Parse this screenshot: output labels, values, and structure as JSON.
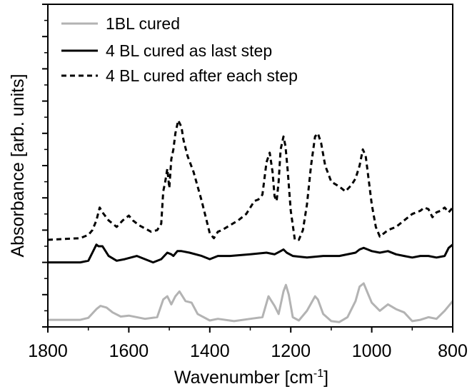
{
  "chart_data": {
    "type": "line",
    "xlabel": "Wavenumber [cm",
    "xlabel_sup": "-1",
    "xlabel_tail": "]",
    "ylabel": "Absorbance [arb. units]",
    "xlim": [
      1800,
      800
    ],
    "x_reversed": true,
    "ylim": [
      0,
      10
    ],
    "y_tick_labels_shown": false,
    "xticks": [
      1800,
      1600,
      1400,
      1200,
      1000,
      800
    ],
    "xtick_labels": [
      "1800",
      "1600",
      "1400",
      "1200",
      "1000",
      "800"
    ],
    "legend_position": "top-left",
    "series": [
      {
        "name": "1BL cured",
        "color": "#b3b3b3",
        "dash": "solid",
        "x": [
          1800,
          1720,
          1700,
          1680,
          1670,
          1655,
          1640,
          1620,
          1600,
          1560,
          1530,
          1515,
          1505,
          1495,
          1485,
          1475,
          1460,
          1445,
          1430,
          1400,
          1380,
          1340,
          1300,
          1270,
          1255,
          1240,
          1230,
          1218,
          1212,
          1205,
          1195,
          1180,
          1160,
          1140,
          1133,
          1120,
          1100,
          1080,
          1060,
          1040,
          1030,
          1020,
          1010,
          1000,
          980,
          960,
          940,
          920,
          900,
          880,
          860,
          840,
          820,
          800
        ],
        "y": [
          0.22,
          0.22,
          0.28,
          0.55,
          0.65,
          0.6,
          0.45,
          0.32,
          0.35,
          0.25,
          0.3,
          0.85,
          0.95,
          0.7,
          0.95,
          1.1,
          0.8,
          0.75,
          0.4,
          0.2,
          0.25,
          0.18,
          0.25,
          0.3,
          0.95,
          0.65,
          0.4,
          1.1,
          1.3,
          1.0,
          0.3,
          0.2,
          0.5,
          0.95,
          0.85,
          0.4,
          0.18,
          0.15,
          0.3,
          0.8,
          1.25,
          1.35,
          1.05,
          0.75,
          0.5,
          0.7,
          0.55,
          0.45,
          0.18,
          0.22,
          0.3,
          0.25,
          0.5,
          0.8
        ]
      },
      {
        "name": "4 BL cured as last step",
        "color": "#000000",
        "dash": "solid",
        "x": [
          1800,
          1720,
          1700,
          1690,
          1680,
          1675,
          1665,
          1650,
          1630,
          1610,
          1580,
          1540,
          1520,
          1505,
          1495,
          1490,
          1480,
          1470,
          1450,
          1420,
          1400,
          1380,
          1350,
          1300,
          1260,
          1240,
          1225,
          1218,
          1210,
          1195,
          1160,
          1120,
          1080,
          1040,
          1030,
          1020,
          1010,
          1000,
          980,
          960,
          940,
          920,
          900,
          880,
          860,
          840,
          820,
          810,
          800
        ],
        "y": [
          2.0,
          2.0,
          2.05,
          2.3,
          2.55,
          2.5,
          2.5,
          2.2,
          2.05,
          2.1,
          2.2,
          2.0,
          2.1,
          2.3,
          2.25,
          2.2,
          2.35,
          2.35,
          2.3,
          2.2,
          2.1,
          2.2,
          2.2,
          2.25,
          2.3,
          2.25,
          2.35,
          2.4,
          2.3,
          2.2,
          2.15,
          2.2,
          2.2,
          2.3,
          2.4,
          2.45,
          2.4,
          2.35,
          2.3,
          2.35,
          2.25,
          2.2,
          2.15,
          2.2,
          2.2,
          2.15,
          2.2,
          2.45,
          2.55
        ]
      },
      {
        "name": "4 BL cured after each step",
        "color": "#000000",
        "dash": "dashed",
        "x": [
          1800,
          1720,
          1710,
          1700,
          1690,
          1680,
          1672,
          1665,
          1650,
          1630,
          1615,
          1600,
          1590,
          1575,
          1560,
          1545,
          1530,
          1520,
          1515,
          1510,
          1505,
          1500,
          1495,
          1490,
          1485,
          1478,
          1470,
          1465,
          1455,
          1440,
          1420,
          1400,
          1390,
          1380,
          1370,
          1350,
          1330,
          1310,
          1300,
          1290,
          1280,
          1270,
          1260,
          1252,
          1245,
          1240,
          1235,
          1230,
          1225,
          1218,
          1213,
          1208,
          1200,
          1190,
          1180,
          1170,
          1160,
          1150,
          1140,
          1133,
          1125,
          1115,
          1100,
          1080,
          1065,
          1050,
          1040,
          1030,
          1022,
          1015,
          1008,
          1000,
          990,
          980,
          970,
          960,
          940,
          920,
          900,
          880,
          870,
          860,
          850,
          840,
          830,
          820,
          810,
          800
        ],
        "y": [
          2.7,
          2.75,
          2.8,
          2.85,
          3.0,
          3.3,
          3.7,
          3.55,
          3.3,
          3.1,
          3.3,
          3.45,
          3.3,
          3.15,
          3.05,
          2.95,
          3.0,
          3.2,
          4.2,
          4.5,
          4.9,
          4.3,
          5.2,
          5.5,
          6.0,
          6.4,
          6.2,
          5.8,
          5.3,
          4.8,
          3.9,
          2.9,
          2.75,
          2.95,
          3.0,
          3.15,
          3.3,
          3.5,
          3.7,
          3.9,
          3.95,
          4.1,
          5.1,
          5.4,
          4.8,
          4.05,
          3.9,
          4.5,
          5.5,
          5.9,
          5.6,
          4.9,
          3.6,
          2.7,
          2.7,
          3.0,
          3.8,
          5.0,
          5.9,
          6.0,
          5.7,
          5.0,
          4.5,
          4.35,
          4.2,
          4.4,
          4.6,
          5.0,
          5.5,
          5.3,
          4.6,
          3.8,
          3.1,
          2.8,
          2.9,
          3.0,
          3.1,
          3.3,
          3.5,
          3.6,
          3.7,
          3.65,
          3.4,
          3.55,
          3.6,
          3.7,
          3.55,
          3.7
        ]
      }
    ]
  }
}
